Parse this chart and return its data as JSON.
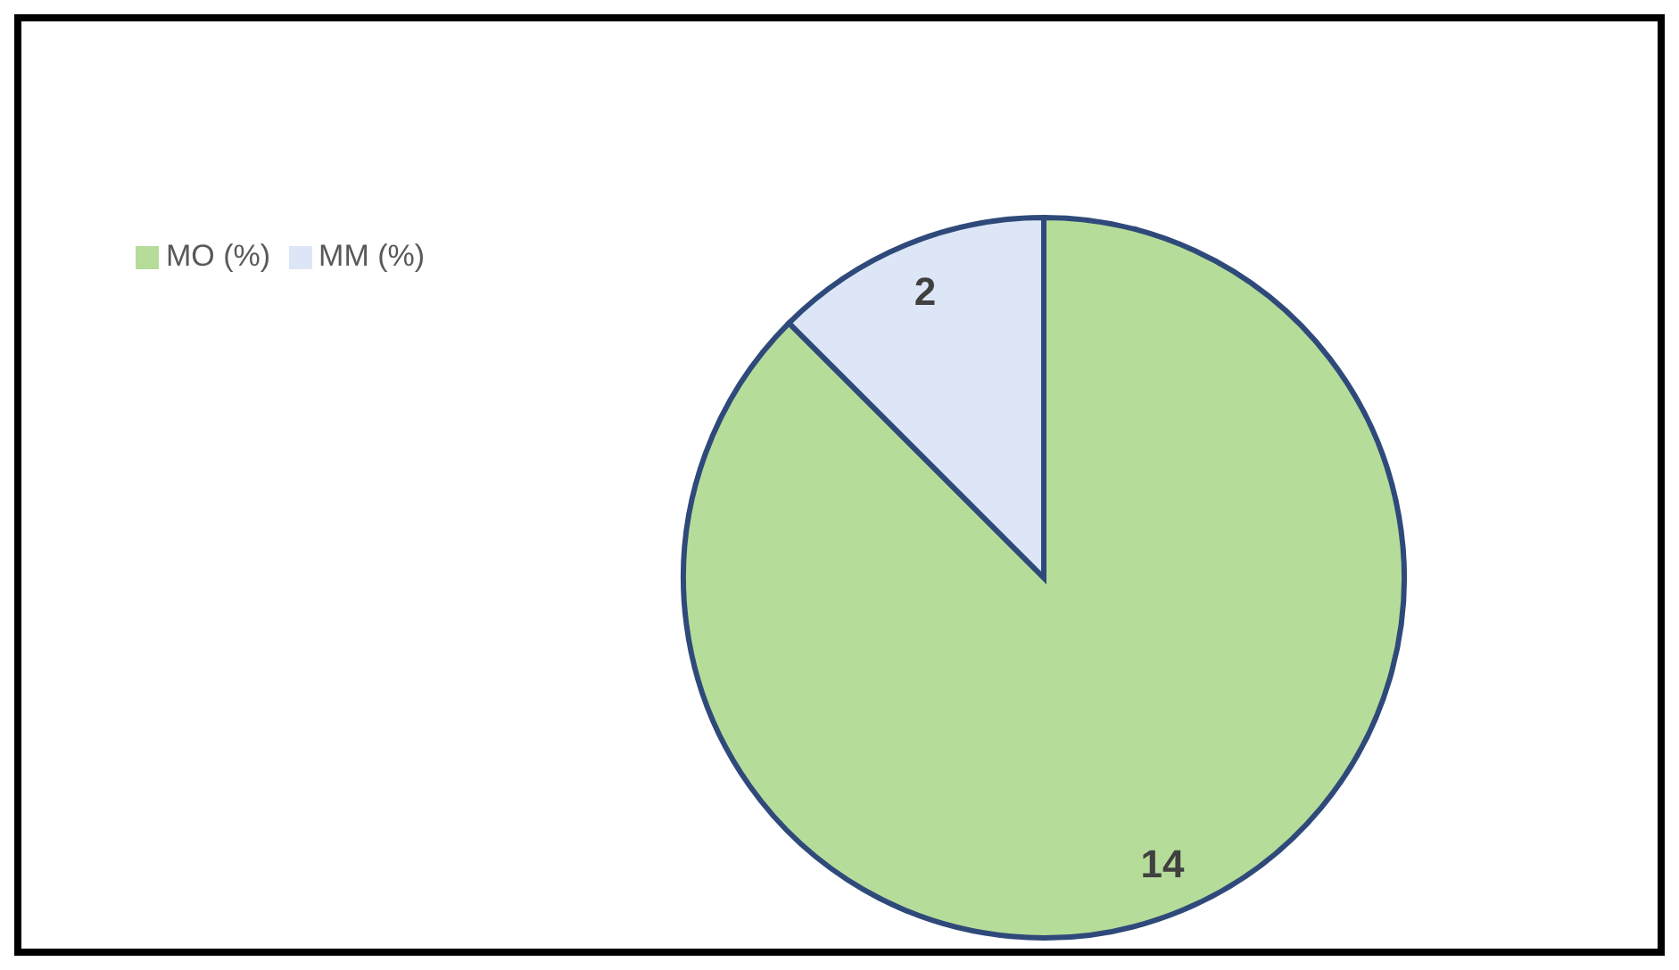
{
  "chart_data": {
    "type": "pie",
    "categories": [
      "MO (%)",
      "MM (%)"
    ],
    "values": [
      14,
      2
    ],
    "colors": [
      "#b6dc9a",
      "#dde6f6"
    ],
    "data_labels": true,
    "legend": "top left"
  }
}
